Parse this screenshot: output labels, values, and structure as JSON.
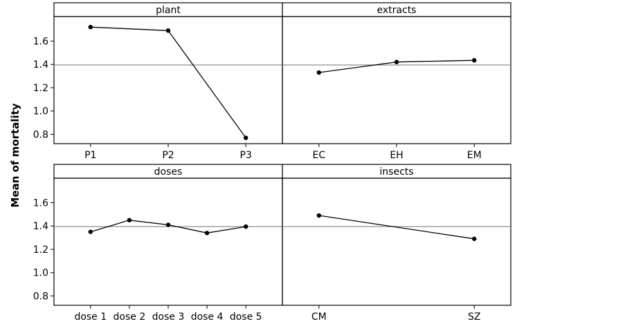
{
  "chart_data": {
    "type": "line",
    "title": "",
    "ylabel": "Mean of mortality",
    "ylim": [
      0.72,
      1.81
    ],
    "yticks": [
      0.8,
      1.0,
      1.2,
      1.4,
      1.6
    ],
    "ytick_labels": [
      "0.8",
      "1.0",
      "1.2",
      "1.4",
      "1.6"
    ],
    "grand_mean": 1.395,
    "panels": [
      {
        "name": "plant",
        "categories": [
          "P1",
          "P2",
          "P3"
        ],
        "values": [
          1.72,
          1.69,
          0.77
        ]
      },
      {
        "name": "extracts",
        "categories": [
          "EC",
          "EH",
          "EM"
        ],
        "values": [
          1.33,
          1.42,
          1.435
        ]
      },
      {
        "name": "doses",
        "categories": [
          "dose 1",
          "dose 2",
          "dose 3",
          "dose 4",
          "dose 5"
        ],
        "values": [
          1.35,
          1.45,
          1.41,
          1.34,
          1.395
        ]
      },
      {
        "name": "insects",
        "categories": [
          "CM",
          "SZ"
        ],
        "values": [
          1.49,
          1.29
        ]
      }
    ]
  }
}
